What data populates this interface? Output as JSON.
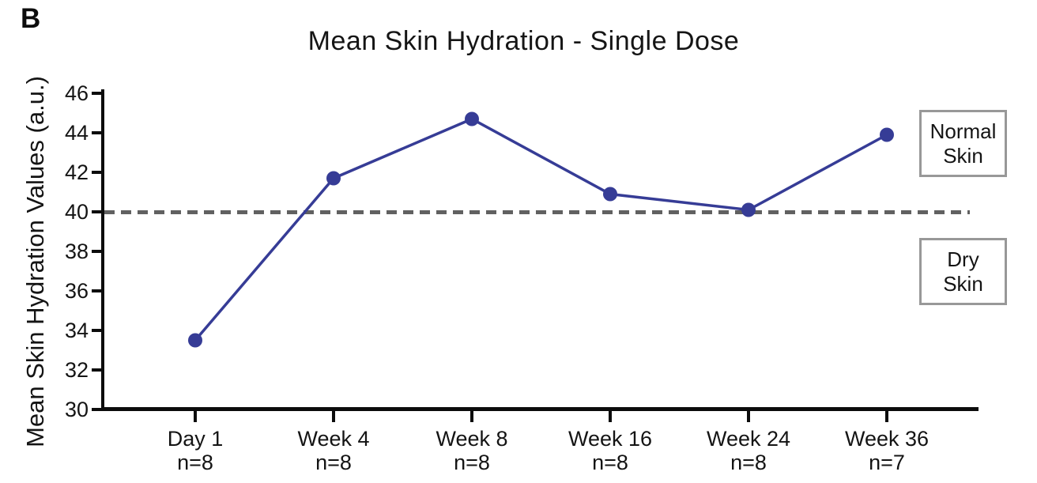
{
  "figure": {
    "panel_label": "B"
  },
  "chart_data": {
    "type": "line",
    "title": "Mean Skin Hydration - Single Dose",
    "xlabel": "",
    "ylabel": "Mean Skin Hydration Values (a.u.)",
    "ylim": [
      30,
      46
    ],
    "yticks": [
      46,
      44,
      42,
      40,
      38,
      36,
      34,
      32,
      30
    ],
    "categories": [
      "Day 1",
      "Week 4",
      "Week 8",
      "Week 16",
      "Week 24",
      "Week 36"
    ],
    "sample_sizes": [
      "n=8",
      "n=8",
      "n=8",
      "n=8",
      "n=8",
      "n=7"
    ],
    "series": [
      {
        "name": "Single Dose",
        "values": [
          33.5,
          41.7,
          44.7,
          40.9,
          40.1,
          43.9
        ]
      }
    ],
    "reference_line": {
      "value": 40,
      "style": "dashed"
    },
    "annotations": [
      {
        "id": "normal-skin",
        "line1": "Normal",
        "line2": "Skin",
        "region": "above reference line"
      },
      {
        "id": "dry-skin",
        "line1": "Dry",
        "line2": "Skin",
        "region": "below reference line"
      }
    ],
    "legend": "none",
    "grid": false,
    "colors": {
      "line": "#363c96",
      "marker": "#363c96",
      "reference_line": "#616161",
      "axis": "#0c0c0c",
      "annotation_border": "#989898"
    }
  }
}
